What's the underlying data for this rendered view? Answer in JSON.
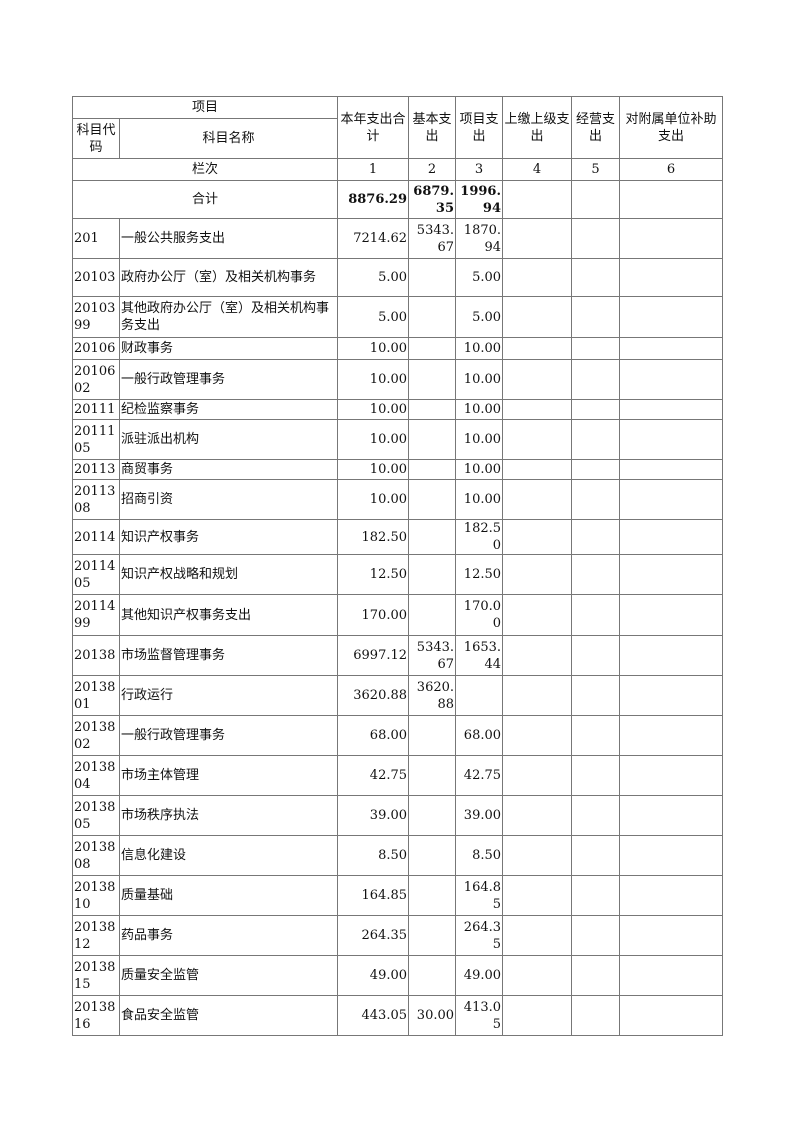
{
  "header": {
    "item": "项目",
    "code": "科目代码",
    "name": "科目名称",
    "cols": [
      "本年支出合计",
      "基本支出",
      "项目支出",
      "上缴上级支出",
      "经营支出",
      "对附属单位补助支出"
    ],
    "lanci": "栏次",
    "col_nums": [
      "1",
      "2",
      "3",
      "4",
      "5",
      "6"
    ]
  },
  "total": {
    "label": "合计",
    "total": "8876.29",
    "basic": "6879.35",
    "project": "1996.94"
  },
  "rows": [
    {
      "code": "201",
      "name": "一般公共服务支出",
      "total": "7214.62",
      "basic": "5343.67",
      "project": "1870.94"
    },
    {
      "code": "20103",
      "name": "政府办公厅（室）及相关机构事务",
      "total": "5.00",
      "basic": "",
      "project": "5.00"
    },
    {
      "code": "2010399",
      "name": "其他政府办公厅（室）及相关机构事务支出",
      "total": "5.00",
      "basic": "",
      "project": "5.00"
    },
    {
      "code": "20106",
      "name": "财政事务",
      "total": "10.00",
      "basic": "",
      "project": "10.00"
    },
    {
      "code": "2010602",
      "name": "一般行政管理事务",
      "total": "10.00",
      "basic": "",
      "project": "10.00"
    },
    {
      "code": "20111",
      "name": "纪检监察事务",
      "total": "10.00",
      "basic": "",
      "project": "10.00"
    },
    {
      "code": "2011105",
      "name": "派驻派出机构",
      "total": "10.00",
      "basic": "",
      "project": "10.00"
    },
    {
      "code": "20113",
      "name": "商贸事务",
      "total": "10.00",
      "basic": "",
      "project": "10.00"
    },
    {
      "code": "2011308",
      "name": "招商引资",
      "total": "10.00",
      "basic": "",
      "project": "10.00"
    },
    {
      "code": "20114",
      "name": "知识产权事务",
      "total": "182.50",
      "basic": "",
      "project": "182.50"
    },
    {
      "code": "2011405",
      "name": "知识产权战略和规划",
      "total": "12.50",
      "basic": "",
      "project": "12.50"
    },
    {
      "code": "2011499",
      "name": "其他知识产权事务支出",
      "total": "170.00",
      "basic": "",
      "project": "170.00"
    },
    {
      "code": "20138",
      "name": "市场监督管理事务",
      "total": "6997.12",
      "basic": "5343.67",
      "project": "1653.44"
    },
    {
      "code": "2013801",
      "name": "行政运行",
      "total": "3620.88",
      "basic": "3620.88",
      "project": ""
    },
    {
      "code": "2013802",
      "name": "一般行政管理事务",
      "total": "68.00",
      "basic": "",
      "project": "68.00"
    },
    {
      "code": "2013804",
      "name": "市场主体管理",
      "total": "42.75",
      "basic": "",
      "project": "42.75"
    },
    {
      "code": "2013805",
      "name": "市场秩序执法",
      "total": "39.00",
      "basic": "",
      "project": "39.00"
    },
    {
      "code": "2013808",
      "name": "信息化建设",
      "total": "8.50",
      "basic": "",
      "project": "8.50"
    },
    {
      "code": "2013810",
      "name": "质量基础",
      "total": "164.85",
      "basic": "",
      "project": "164.85"
    },
    {
      "code": "2013812",
      "name": "药品事务",
      "total": "264.35",
      "basic": "",
      "project": "264.35"
    },
    {
      "code": "2013815",
      "name": "质量安全监管",
      "total": "49.00",
      "basic": "",
      "project": "49.00"
    },
    {
      "code": "2013816",
      "name": "食品安全监管",
      "total": "443.05",
      "basic": "30.00",
      "project": "413.05"
    }
  ]
}
